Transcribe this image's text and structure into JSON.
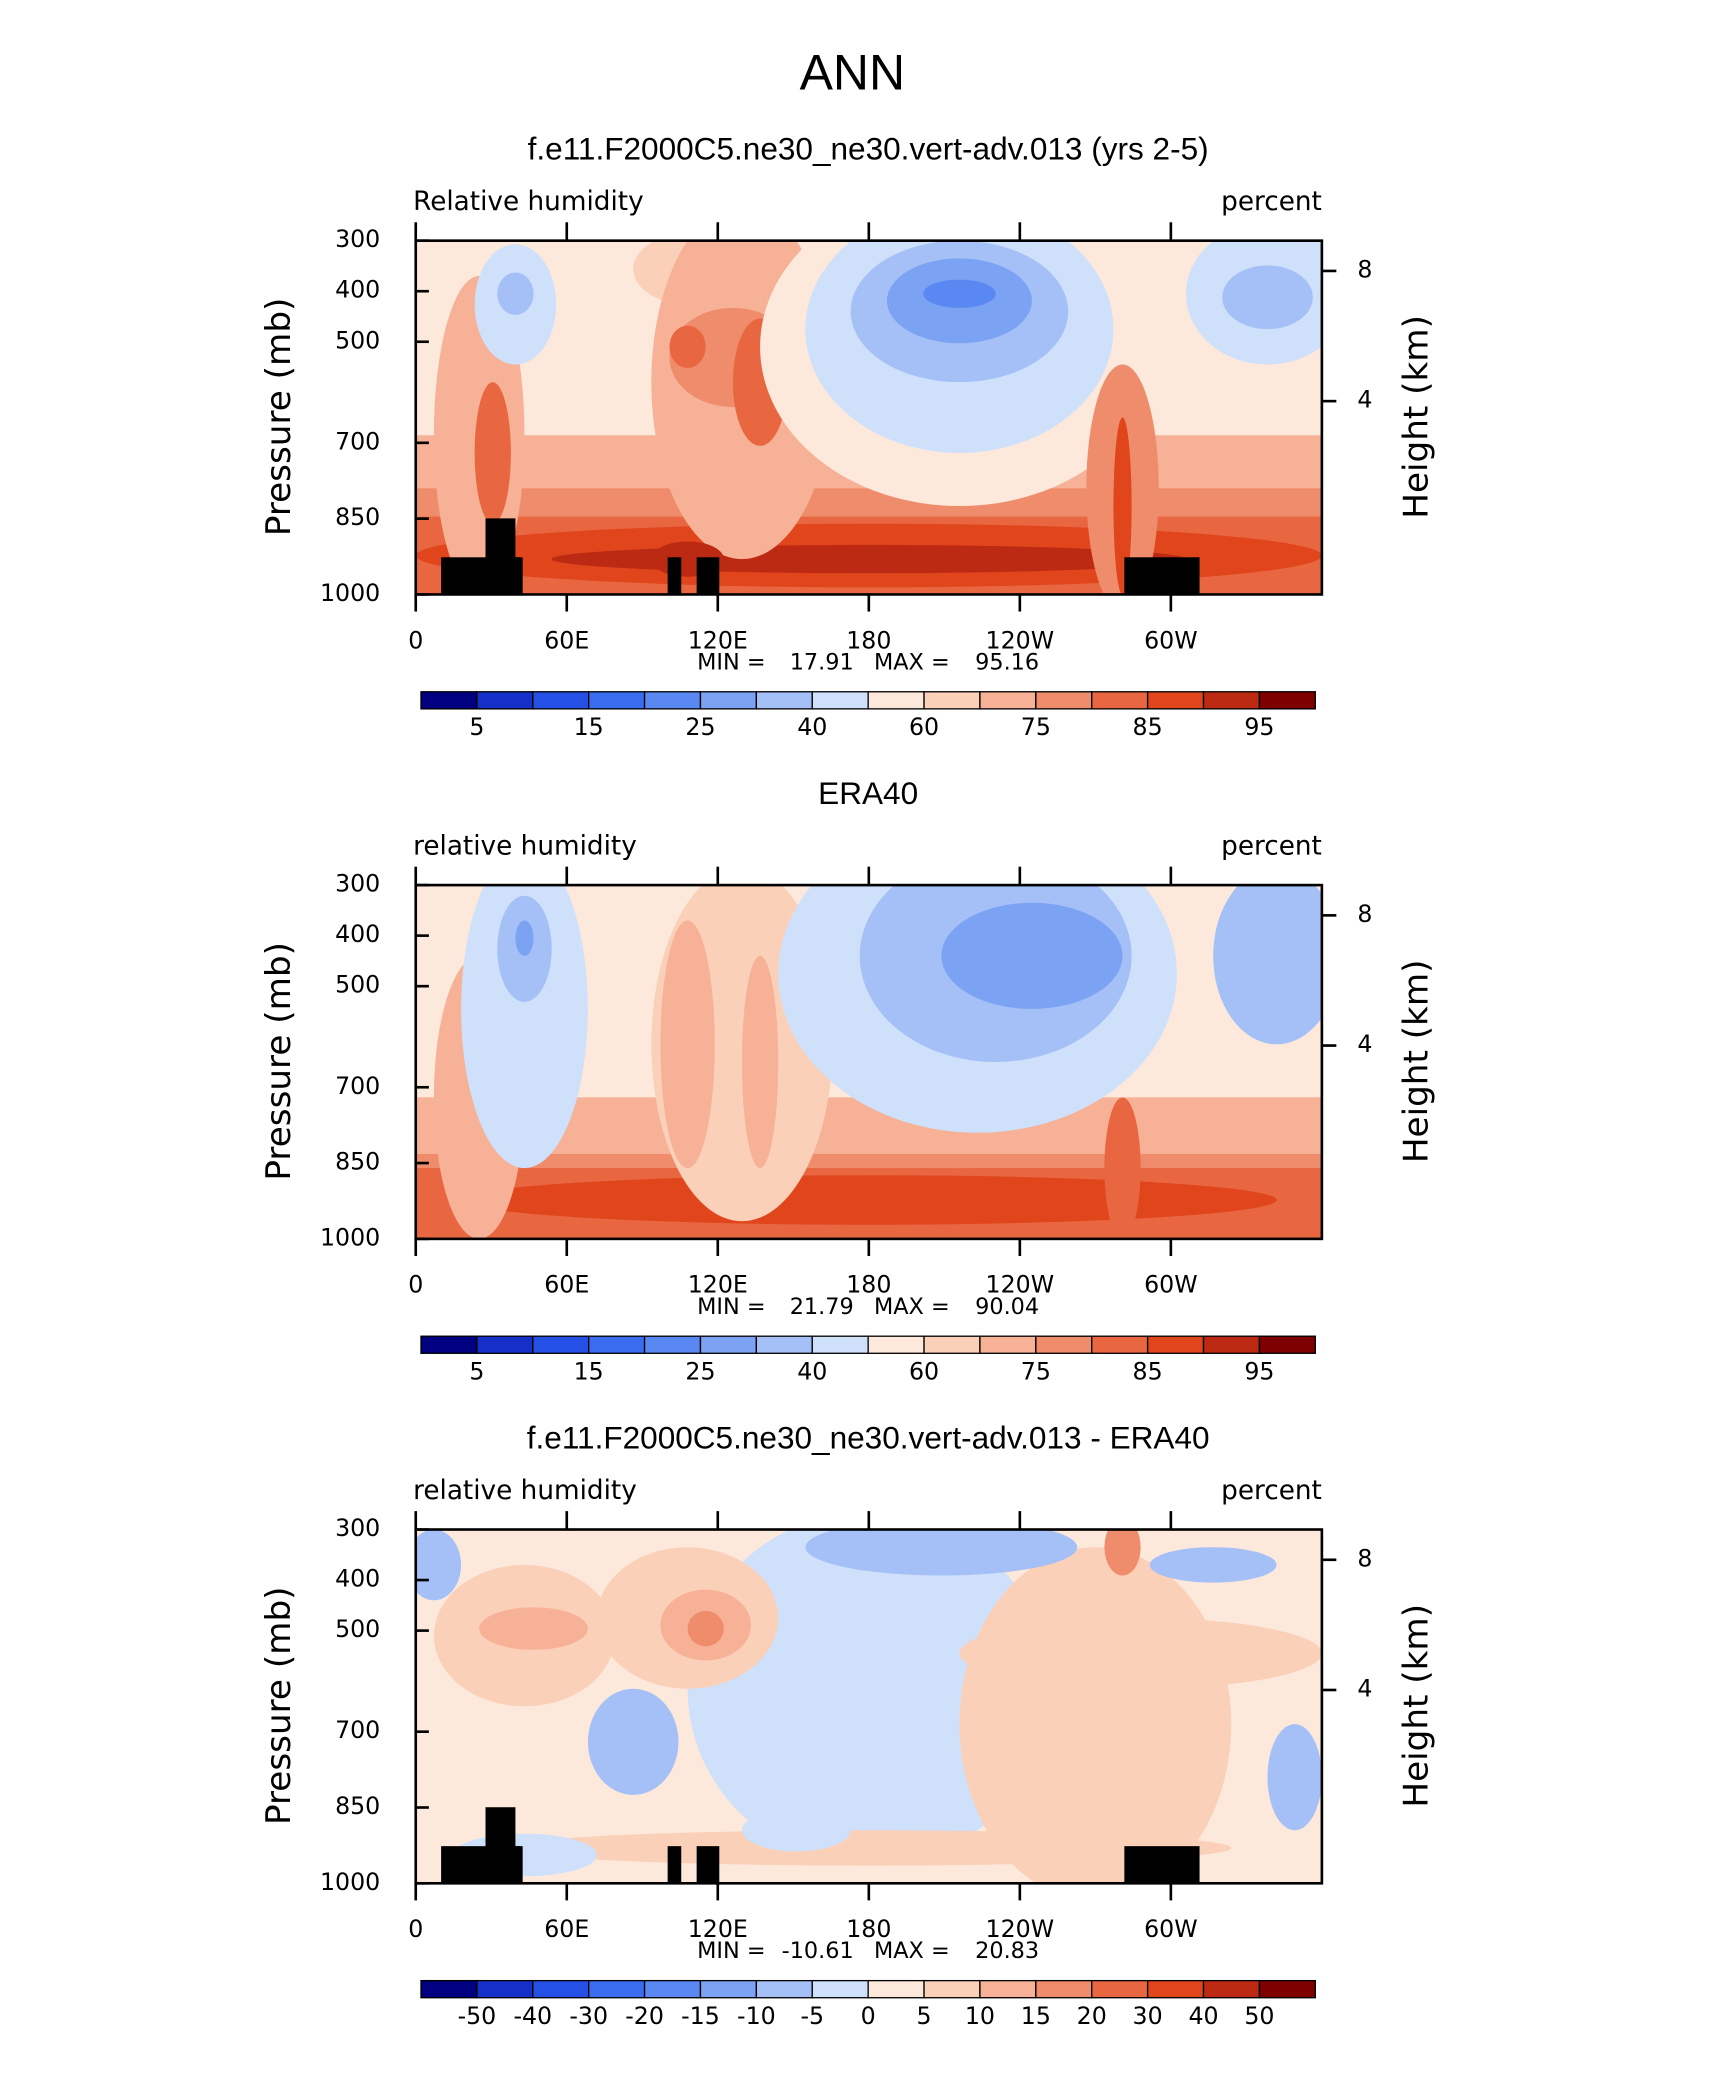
{
  "title": "ANN",
  "chart_data": [
    {
      "type": "contour",
      "title": "f.e11.F2000C5.ne30_ne30.vert-adv.013 (yrs 2-5)",
      "variable": "Relative humidity",
      "units": "percent",
      "ylabel": "Pressure (mb)",
      "y2label": "Height (km)",
      "xlim": [
        0,
        360
      ],
      "xticks": [
        0,
        {
          "value": 60,
          "label": "60E"
        },
        {
          "value": 120,
          "label": "120E"
        },
        180,
        {
          "value": 240,
          "label": "120W"
        },
        {
          "value": 300,
          "label": "60W"
        }
      ],
      "ylim": [
        1000,
        300
      ],
      "yticks": [
        300,
        400,
        500,
        700,
        850,
        1000
      ],
      "y2lim": [
        -1.94,
        8.93
      ],
      "y2ticks": [
        4,
        8
      ],
      "min_label": "MIN =",
      "min": 17.91,
      "max_label": "MAX =",
      "max": 95.16,
      "colorbar": {
        "levels": [
          5,
          15,
          25,
          40,
          60,
          75,
          85,
          95
        ],
        "colors": [
          "#000080",
          "#1530c8",
          "#2550e6",
          "#3a6cf0",
          "#5a88f2",
          "#7ca2f4",
          "#a4c0f7",
          "#cfe0fb",
          "#fde9db",
          "#fbd0b8",
          "#f6b196",
          "#ef8c6c",
          "#e86640",
          "#e0451c",
          "#bc2a14",
          "#7f0000"
        ]
      }
    },
    {
      "type": "contour",
      "title": "ERA40",
      "variable": "relative humidity",
      "units": "percent",
      "ylabel": "Pressure (mb)",
      "y2label": "Height (km)",
      "xlim": [
        0,
        360
      ],
      "xticks": [
        0,
        {
          "value": 60,
          "label": "60E"
        },
        {
          "value": 120,
          "label": "120E"
        },
        180,
        {
          "value": 240,
          "label": "120W"
        },
        {
          "value": 300,
          "label": "60W"
        }
      ],
      "ylim": [
        1000,
        300
      ],
      "yticks": [
        300,
        400,
        500,
        700,
        850,
        1000
      ],
      "y2lim": [
        -1.94,
        8.93
      ],
      "y2ticks": [
        4,
        8
      ],
      "min_label": "MIN =",
      "min": 21.79,
      "max_label": "MAX =",
      "max": 90.04,
      "colorbar": {
        "levels": [
          5,
          15,
          25,
          40,
          60,
          75,
          85,
          95
        ],
        "colors": [
          "#000080",
          "#1530c8",
          "#2550e6",
          "#3a6cf0",
          "#5a88f2",
          "#7ca2f4",
          "#a4c0f7",
          "#cfe0fb",
          "#fde9db",
          "#fbd0b8",
          "#f6b196",
          "#ef8c6c",
          "#e86640",
          "#e0451c",
          "#bc2a14",
          "#7f0000"
        ]
      }
    },
    {
      "type": "contour",
      "title": "f.e11.F2000C5.ne30_ne30.vert-adv.013 - ERA40",
      "variable": "relative humidity",
      "units": "percent",
      "ylabel": "Pressure (mb)",
      "y2label": "Height (km)",
      "xlim": [
        0,
        360
      ],
      "xticks": [
        0,
        {
          "value": 60,
          "label": "60E"
        },
        {
          "value": 120,
          "label": "120E"
        },
        180,
        {
          "value": 240,
          "label": "120W"
        },
        {
          "value": 300,
          "label": "60W"
        }
      ],
      "ylim": [
        1000,
        300
      ],
      "yticks": [
        300,
        400,
        500,
        700,
        850,
        1000
      ],
      "y2lim": [
        -1.94,
        8.93
      ],
      "y2ticks": [
        4,
        8
      ],
      "min_label": "MIN =",
      "min": -10.61,
      "max_label": "MAX =",
      "max": 20.83,
      "colorbar": {
        "levels": [
          -50,
          -40,
          -30,
          -20,
          -15,
          -10,
          -5,
          0,
          5,
          10,
          15,
          20,
          30,
          40,
          50
        ],
        "colors": [
          "#000080",
          "#1530c8",
          "#2550e6",
          "#3a6cf0",
          "#5a88f2",
          "#7ca2f4",
          "#a4c0f7",
          "#cfe0fb",
          "#fde9db",
          "#fbd0b8",
          "#f6b196",
          "#ef8c6c",
          "#e86640",
          "#e0451c",
          "#bc2a14",
          "#7f0000"
        ]
      }
    }
  ]
}
